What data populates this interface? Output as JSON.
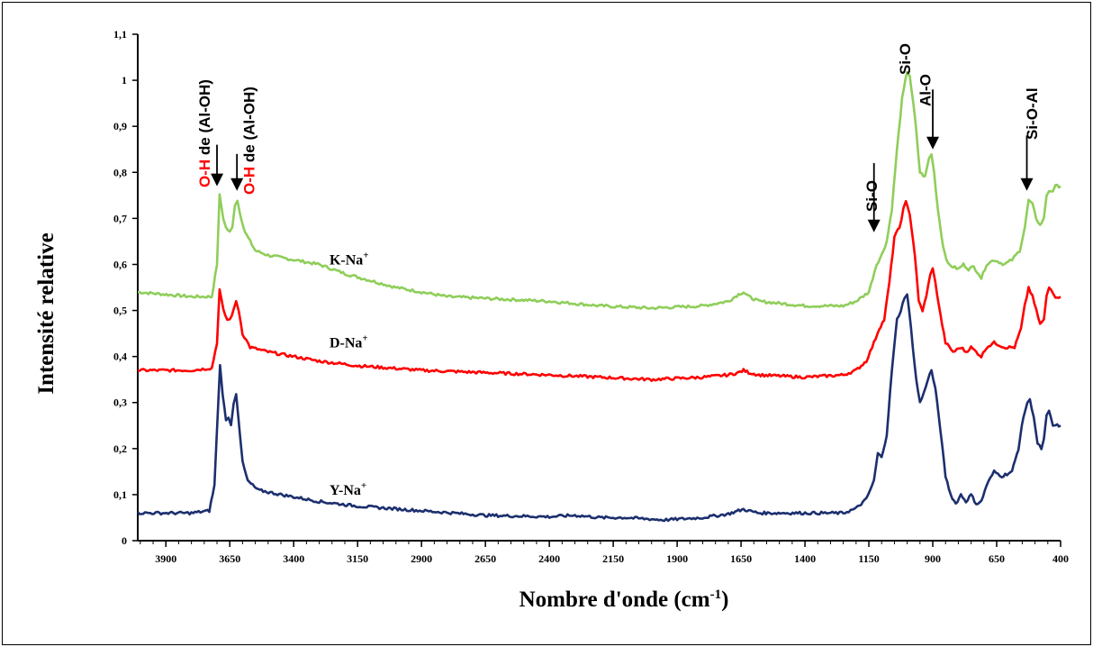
{
  "chart_data": {
    "type": "line",
    "xlabel": "Nombre d'onde (cm",
    "xlabel_sup": "-1",
    "xlabel_end": ")",
    "ylabel": "Intensité relative",
    "xlim": [
      4010,
      400
    ],
    "ylim": [
      0,
      1.1
    ],
    "x_reversed": true,
    "xticks": [
      "3900",
      "3650",
      "3400",
      "3150",
      "2900",
      "2650",
      "2400",
      "2150",
      "1900",
      "1650",
      "1400",
      "1150",
      "900",
      "650",
      "400"
    ],
    "yticks": [
      "0",
      "0,1",
      "0,2",
      "0,3",
      "0,4",
      "0,5",
      "0,6",
      "0,7",
      "0,8",
      "0,9",
      "1",
      "1,1"
    ],
    "grid": false,
    "series": [
      {
        "name": "K-Na",
        "name_sup": "+",
        "color": "#8fce5a",
        "label_x": 3260,
        "label_y": 0.6,
        "points": [
          [
            4010,
            0.54
          ],
          [
            3800,
            0.53
          ],
          [
            3720,
            0.53
          ],
          [
            3700,
            0.6
          ],
          [
            3690,
            0.75
          ],
          [
            3675,
            0.7
          ],
          [
            3665,
            0.68
          ],
          [
            3650,
            0.67
          ],
          [
            3640,
            0.68
          ],
          [
            3630,
            0.73
          ],
          [
            3620,
            0.74
          ],
          [
            3610,
            0.71
          ],
          [
            3590,
            0.67
          ],
          [
            3550,
            0.63
          ],
          [
            3500,
            0.62
          ],
          [
            3400,
            0.61
          ],
          [
            3300,
            0.6
          ],
          [
            3200,
            0.58
          ],
          [
            3000,
            0.55
          ],
          [
            2800,
            0.53
          ],
          [
            2600,
            0.525
          ],
          [
            2400,
            0.52
          ],
          [
            2200,
            0.51
          ],
          [
            2000,
            0.505
          ],
          [
            1800,
            0.51
          ],
          [
            1700,
            0.52
          ],
          [
            1660,
            0.535
          ],
          [
            1640,
            0.54
          ],
          [
            1620,
            0.53
          ],
          [
            1580,
            0.52
          ],
          [
            1400,
            0.51
          ],
          [
            1250,
            0.51
          ],
          [
            1200,
            0.52
          ],
          [
            1150,
            0.54
          ],
          [
            1120,
            0.6
          ],
          [
            1100,
            0.62
          ],
          [
            1080,
            0.65
          ],
          [
            1060,
            0.72
          ],
          [
            1040,
            0.85
          ],
          [
            1020,
            0.96
          ],
          [
            1000,
            1.02
          ],
          [
            990,
            1.01
          ],
          [
            970,
            0.92
          ],
          [
            950,
            0.8
          ],
          [
            930,
            0.79
          ],
          [
            915,
            0.83
          ],
          [
            905,
            0.84
          ],
          [
            895,
            0.8
          ],
          [
            880,
            0.72
          ],
          [
            860,
            0.64
          ],
          [
            840,
            0.6
          ],
          [
            800,
            0.59
          ],
          [
            780,
            0.6
          ],
          [
            760,
            0.59
          ],
          [
            740,
            0.595
          ],
          [
            720,
            0.58
          ],
          [
            710,
            0.57
          ],
          [
            690,
            0.6
          ],
          [
            660,
            0.61
          ],
          [
            620,
            0.6
          ],
          [
            590,
            0.61
          ],
          [
            560,
            0.63
          ],
          [
            540,
            0.68
          ],
          [
            525,
            0.74
          ],
          [
            510,
            0.73
          ],
          [
            495,
            0.7
          ],
          [
            480,
            0.685
          ],
          [
            465,
            0.7
          ],
          [
            455,
            0.75
          ],
          [
            445,
            0.76
          ],
          [
            430,
            0.76
          ],
          [
            420,
            0.77
          ],
          [
            400,
            0.77
          ]
        ]
      },
      {
        "name": "D-Na",
        "name_sup": "+",
        "color": "#ff0000",
        "label_x": 3260,
        "label_y": 0.42,
        "points": [
          [
            4010,
            0.37
          ],
          [
            3800,
            0.37
          ],
          [
            3720,
            0.375
          ],
          [
            3700,
            0.43
          ],
          [
            3690,
            0.545
          ],
          [
            3675,
            0.5
          ],
          [
            3660,
            0.48
          ],
          [
            3650,
            0.48
          ],
          [
            3635,
            0.5
          ],
          [
            3625,
            0.52
          ],
          [
            3615,
            0.5
          ],
          [
            3600,
            0.45
          ],
          [
            3570,
            0.42
          ],
          [
            3500,
            0.41
          ],
          [
            3400,
            0.4
          ],
          [
            3300,
            0.39
          ],
          [
            3150,
            0.38
          ],
          [
            2900,
            0.37
          ],
          [
            2650,
            0.365
          ],
          [
            2400,
            0.36
          ],
          [
            2200,
            0.355
          ],
          [
            2000,
            0.35
          ],
          [
            1800,
            0.355
          ],
          [
            1700,
            0.36
          ],
          [
            1660,
            0.365
          ],
          [
            1640,
            0.37
          ],
          [
            1620,
            0.365
          ],
          [
            1580,
            0.36
          ],
          [
            1400,
            0.355
          ],
          [
            1250,
            0.36
          ],
          [
            1200,
            0.37
          ],
          [
            1160,
            0.39
          ],
          [
            1130,
            0.43
          ],
          [
            1110,
            0.46
          ],
          [
            1090,
            0.48
          ],
          [
            1070,
            0.56
          ],
          [
            1050,
            0.66
          ],
          [
            1030,
            0.68
          ],
          [
            1015,
            0.72
          ],
          [
            1005,
            0.735
          ],
          [
            990,
            0.71
          ],
          [
            970,
            0.62
          ],
          [
            955,
            0.52
          ],
          [
            940,
            0.5
          ],
          [
            925,
            0.53
          ],
          [
            910,
            0.58
          ],
          [
            900,
            0.59
          ],
          [
            890,
            0.56
          ],
          [
            870,
            0.49
          ],
          [
            850,
            0.43
          ],
          [
            820,
            0.41
          ],
          [
            790,
            0.42
          ],
          [
            770,
            0.41
          ],
          [
            750,
            0.42
          ],
          [
            730,
            0.41
          ],
          [
            710,
            0.4
          ],
          [
            690,
            0.42
          ],
          [
            660,
            0.43
          ],
          [
            620,
            0.42
          ],
          [
            580,
            0.42
          ],
          [
            555,
            0.46
          ],
          [
            540,
            0.51
          ],
          [
            525,
            0.55
          ],
          [
            510,
            0.53
          ],
          [
            495,
            0.5
          ],
          [
            480,
            0.47
          ],
          [
            465,
            0.48
          ],
          [
            455,
            0.53
          ],
          [
            445,
            0.55
          ],
          [
            430,
            0.54
          ],
          [
            420,
            0.53
          ],
          [
            400,
            0.53
          ]
        ]
      },
      {
        "name": "Y-Na",
        "name_sup": "+",
        "color": "#1c2f6e",
        "label_x": 3260,
        "label_y": 0.1,
        "points": [
          [
            4010,
            0.06
          ],
          [
            3800,
            0.06
          ],
          [
            3730,
            0.065
          ],
          [
            3710,
            0.12
          ],
          [
            3695,
            0.3
          ],
          [
            3688,
            0.38
          ],
          [
            3678,
            0.32
          ],
          [
            3665,
            0.26
          ],
          [
            3655,
            0.27
          ],
          [
            3645,
            0.25
          ],
          [
            3635,
            0.3
          ],
          [
            3625,
            0.32
          ],
          [
            3615,
            0.26
          ],
          [
            3600,
            0.17
          ],
          [
            3580,
            0.13
          ],
          [
            3540,
            0.11
          ],
          [
            3450,
            0.1
          ],
          [
            3300,
            0.085
          ],
          [
            3150,
            0.075
          ],
          [
            2900,
            0.065
          ],
          [
            2650,
            0.055
          ],
          [
            2400,
            0.052
          ],
          [
            2300,
            0.055
          ],
          [
            2200,
            0.05
          ],
          [
            2100,
            0.05
          ],
          [
            1950,
            0.045
          ],
          [
            1800,
            0.05
          ],
          [
            1700,
            0.058
          ],
          [
            1660,
            0.065
          ],
          [
            1640,
            0.068
          ],
          [
            1620,
            0.065
          ],
          [
            1580,
            0.06
          ],
          [
            1400,
            0.06
          ],
          [
            1250,
            0.06
          ],
          [
            1200,
            0.07
          ],
          [
            1160,
            0.09
          ],
          [
            1130,
            0.13
          ],
          [
            1115,
            0.19
          ],
          [
            1100,
            0.18
          ],
          [
            1080,
            0.23
          ],
          [
            1060,
            0.37
          ],
          [
            1040,
            0.48
          ],
          [
            1025,
            0.5
          ],
          [
            1010,
            0.53
          ],
          [
            1000,
            0.535
          ],
          [
            985,
            0.46
          ],
          [
            965,
            0.35
          ],
          [
            950,
            0.3
          ],
          [
            935,
            0.32
          ],
          [
            920,
            0.35
          ],
          [
            905,
            0.37
          ],
          [
            890,
            0.33
          ],
          [
            870,
            0.24
          ],
          [
            850,
            0.14
          ],
          [
            830,
            0.1
          ],
          [
            810,
            0.08
          ],
          [
            790,
            0.1
          ],
          [
            770,
            0.085
          ],
          [
            750,
            0.1
          ],
          [
            730,
            0.08
          ],
          [
            710,
            0.085
          ],
          [
            690,
            0.12
          ],
          [
            660,
            0.15
          ],
          [
            630,
            0.14
          ],
          [
            590,
            0.15
          ],
          [
            565,
            0.2
          ],
          [
            545,
            0.27
          ],
          [
            530,
            0.3
          ],
          [
            520,
            0.305
          ],
          [
            505,
            0.27
          ],
          [
            490,
            0.21
          ],
          [
            475,
            0.2
          ],
          [
            465,
            0.22
          ],
          [
            455,
            0.27
          ],
          [
            445,
            0.28
          ],
          [
            430,
            0.25
          ],
          [
            420,
            0.25
          ],
          [
            400,
            0.25
          ]
        ]
      }
    ],
    "annotations": [
      {
        "id": "oh-1",
        "text": "O-H",
        "text_rest": " de (Al-OH)",
        "highlight_color": "#ff0000",
        "label_x": 3750,
        "arrow_x": 3700,
        "arrow_y1": 0.86,
        "arrow_y2": 0.77
      },
      {
        "id": "oh-2",
        "text": "O-H",
        "text_rest": " de (Al-OH)",
        "highlight_color": "#ff0000",
        "label_x": 3575,
        "arrow_x": 3622,
        "arrow_y1": 0.84,
        "arrow_y2": 0.76
      },
      {
        "id": "si-o-left",
        "text": "Si-O",
        "label_x": 1140,
        "arrow_x": 1130,
        "arrow_y1": 0.82,
        "arrow_y2": 0.67
      },
      {
        "id": "si-o-top",
        "text": "Si-O",
        "label_x": 1010,
        "arrow_x": null,
        "arrow_y1": null,
        "arrow_y2": null
      },
      {
        "id": "al-o",
        "text": "Al-O",
        "label_x": 930,
        "arrow_x": 900,
        "arrow_y1": 0.98,
        "arrow_y2": 0.85
      },
      {
        "id": "si-o-al",
        "text": "Si-O-Al",
        "label_x": 513,
        "arrow_x": 532,
        "arrow_y1": 0.88,
        "arrow_y2": 0.76
      }
    ]
  }
}
